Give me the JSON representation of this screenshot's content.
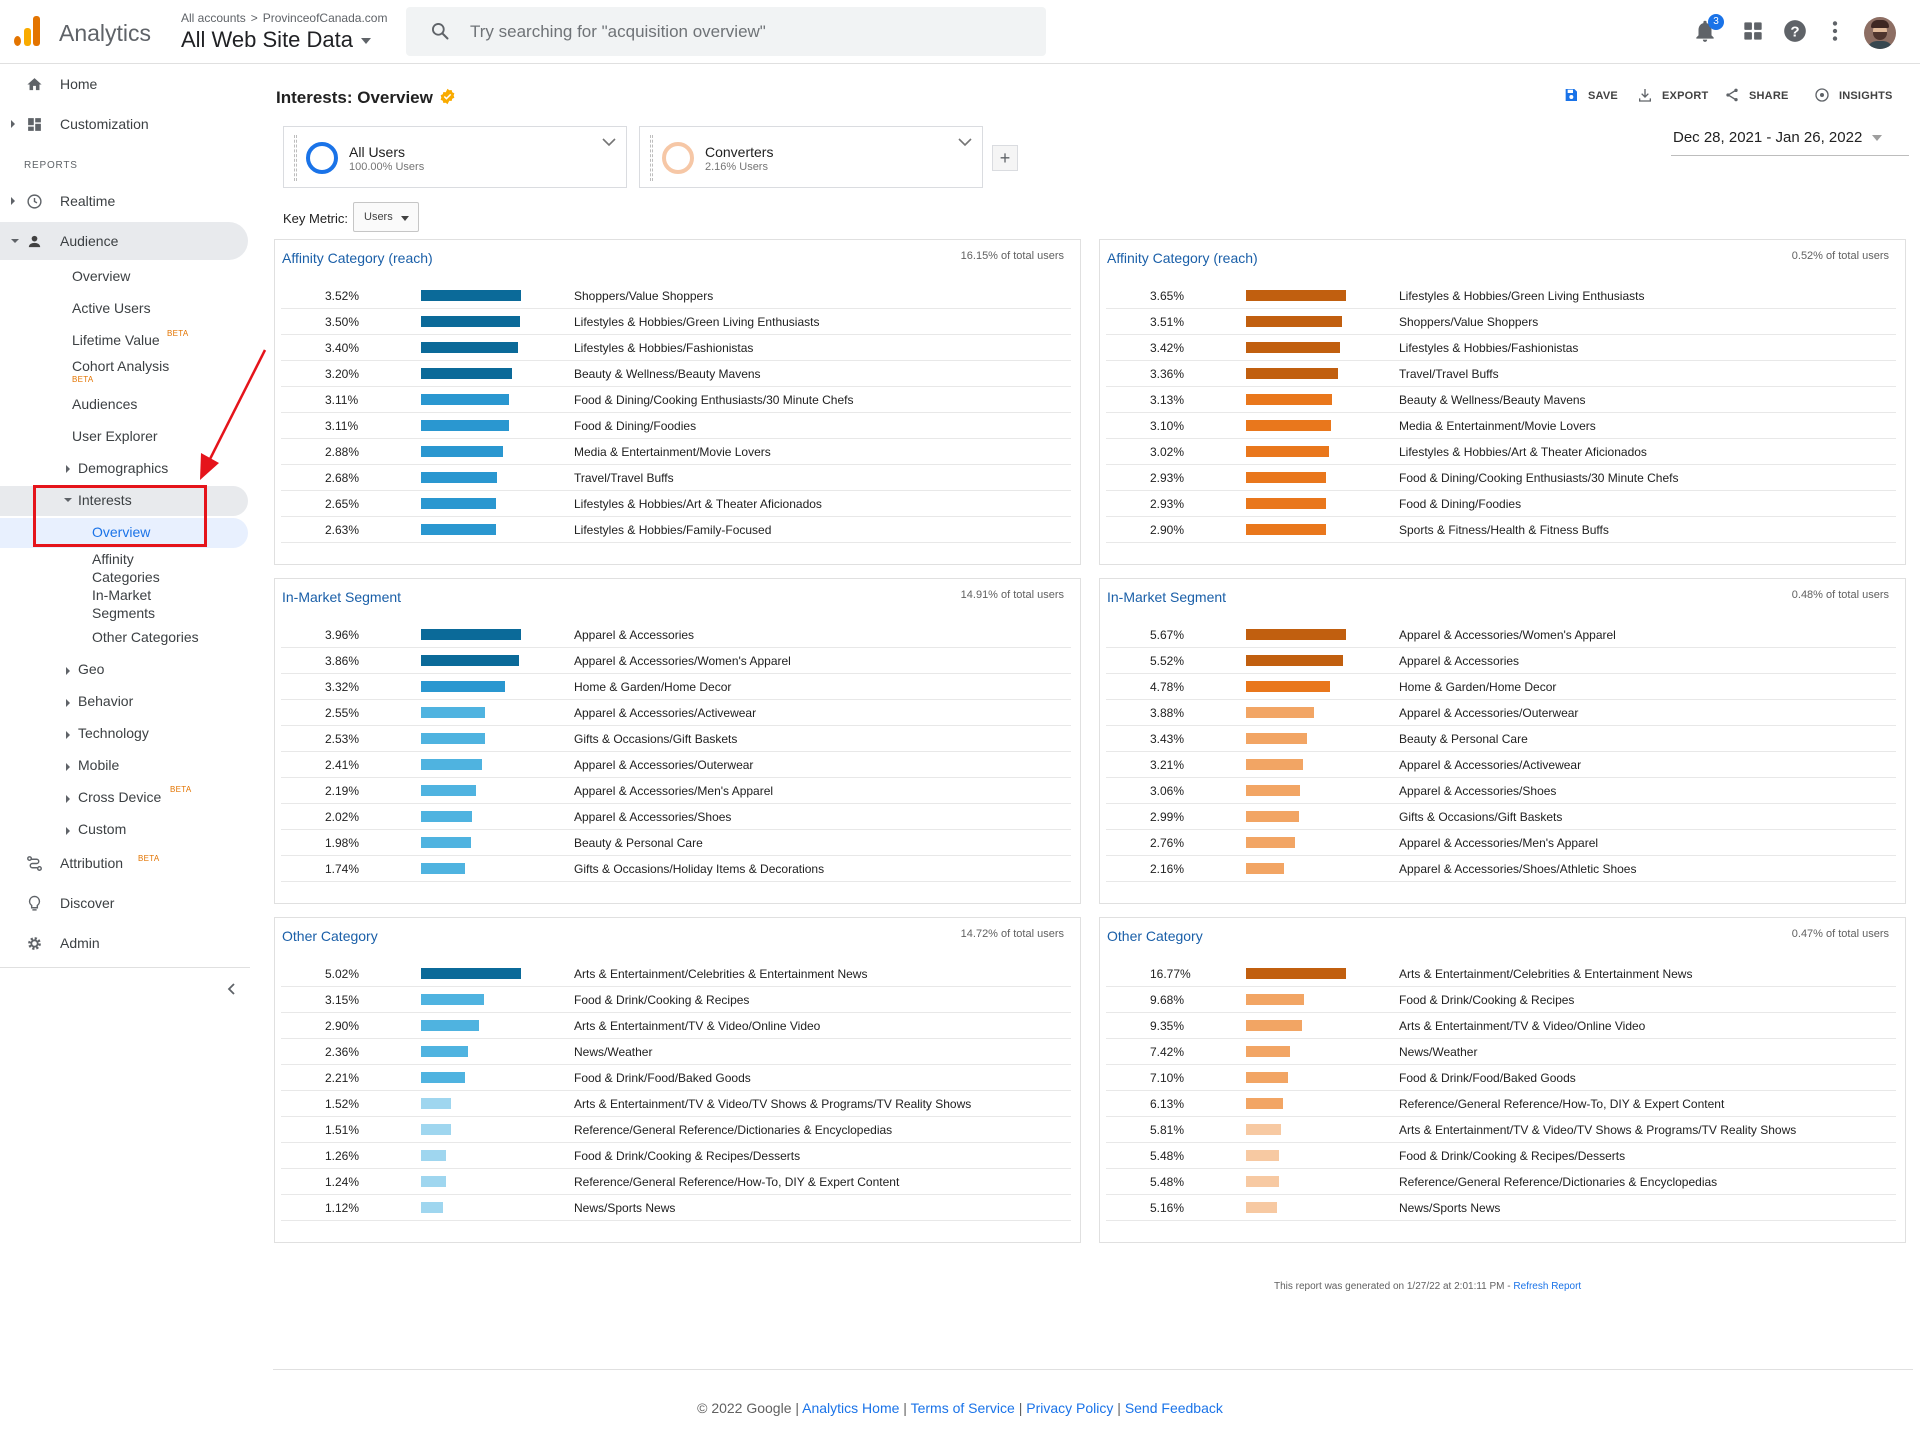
{
  "topbar": {
    "app_name": "Analytics",
    "breadcrumb_root": "All accounts",
    "breadcrumb_sep": ">",
    "breadcrumb_property": "ProvinceofCanada.com",
    "view_name": "All Web Site Data",
    "search_placeholder": "Try searching for \"acquisition overview\"",
    "notifications_count": "3"
  },
  "sidebar": {
    "home": "Home",
    "customization": "Customization",
    "reports_label": "REPORTS",
    "realtime": "Realtime",
    "audience": "Audience",
    "audience_items": {
      "overview": "Overview",
      "active_users": "Active Users",
      "lifetime_value": "Lifetime Value",
      "cohort_analysis": "Cohort Analysis",
      "audiences": "Audiences",
      "user_explorer": "User Explorer",
      "demographics": "Demographics",
      "interests": "Interests",
      "interests_overview": "Overview",
      "affinity_categories_1": "Affinity",
      "affinity_categories_2": "Categories",
      "in_market_1": "In-Market",
      "in_market_2": "Segments",
      "other_categories": "Other Categories",
      "geo": "Geo",
      "behavior": "Behavior",
      "technology": "Technology",
      "mobile": "Mobile",
      "cross_device": "Cross Device",
      "custom": "Custom"
    },
    "beta": "BETA",
    "attribution": "Attribution",
    "discover": "Discover",
    "admin": "Admin"
  },
  "page": {
    "title": "Interests: Overview",
    "actions": {
      "save": "SAVE",
      "export": "EXPORT",
      "share": "SHARE",
      "insights": "INSIGHTS"
    },
    "segments": [
      {
        "name": "All Users",
        "pct": "100.00% Users",
        "color": "#1a73e8"
      },
      {
        "name": "Converters",
        "pct": "2.16% Users",
        "color": "#f6c7a6"
      }
    ],
    "add_segment": "+",
    "date_range": "Dec 28, 2021 - Jan 26, 2022",
    "key_metric_label": "Key Metric:",
    "key_metric_value": "Users"
  },
  "colors": {
    "blue_dark": "#0b6a99",
    "blue_mid": "#2a97d0",
    "blue_light": "#4fb3e0",
    "blue_pale": "#9fd6ef",
    "orange_dark": "#c15f0f",
    "orange_mid": "#e9771c",
    "orange_light": "#f2a564",
    "orange_pale": "#f7c9a2"
  },
  "panels": [
    {
      "title": "Affinity Category (reach)",
      "total": "16.15% of total users",
      "palette": "blue",
      "rows": [
        {
          "value": "3.52%",
          "fraction": 1.0,
          "label": "Shoppers/Value Shoppers"
        },
        {
          "value": "3.50%",
          "fraction": 0.994,
          "label": "Lifestyles & Hobbies/Green Living Enthusiasts"
        },
        {
          "value": "3.40%",
          "fraction": 0.966,
          "label": "Lifestyles & Hobbies/Fashionistas"
        },
        {
          "value": "3.20%",
          "fraction": 0.909,
          "label": "Beauty & Wellness/Beauty Mavens"
        },
        {
          "value": "3.11%",
          "fraction": 0.884,
          "label": "Food & Dining/Cooking Enthusiasts/30 Minute Chefs"
        },
        {
          "value": "3.11%",
          "fraction": 0.884,
          "label": "Food & Dining/Foodies"
        },
        {
          "value": "2.88%",
          "fraction": 0.818,
          "label": "Media & Entertainment/Movie Lovers"
        },
        {
          "value": "2.68%",
          "fraction": 0.761,
          "label": "Travel/Travel Buffs"
        },
        {
          "value": "2.65%",
          "fraction": 0.753,
          "label": "Lifestyles & Hobbies/Art & Theater Aficionados"
        },
        {
          "value": "2.63%",
          "fraction": 0.747,
          "label": "Lifestyles & Hobbies/Family-Focused"
        }
      ]
    },
    {
      "title": "Affinity Category (reach)",
      "total": "0.52% of total users",
      "palette": "orange",
      "rows": [
        {
          "value": "3.65%",
          "fraction": 1.0,
          "label": "Lifestyles & Hobbies/Green Living Enthusiasts"
        },
        {
          "value": "3.51%",
          "fraction": 0.962,
          "label": "Shoppers/Value Shoppers"
        },
        {
          "value": "3.42%",
          "fraction": 0.937,
          "label": "Lifestyles & Hobbies/Fashionistas"
        },
        {
          "value": "3.36%",
          "fraction": 0.921,
          "label": "Travel/Travel Buffs"
        },
        {
          "value": "3.13%",
          "fraction": 0.858,
          "label": "Beauty & Wellness/Beauty Mavens"
        },
        {
          "value": "3.10%",
          "fraction": 0.849,
          "label": "Media & Entertainment/Movie Lovers"
        },
        {
          "value": "3.02%",
          "fraction": 0.827,
          "label": "Lifestyles & Hobbies/Art & Theater Aficionados"
        },
        {
          "value": "2.93%",
          "fraction": 0.803,
          "label": "Food & Dining/Cooking Enthusiasts/30 Minute Chefs"
        },
        {
          "value": "2.93%",
          "fraction": 0.803,
          "label": "Food & Dining/Foodies"
        },
        {
          "value": "2.90%",
          "fraction": 0.795,
          "label": "Sports & Fitness/Health & Fitness Buffs"
        }
      ]
    },
    {
      "title": "In-Market Segment",
      "total": "14.91% of total users",
      "palette": "blue",
      "rows": [
        {
          "value": "3.96%",
          "fraction": 1.0,
          "label": "Apparel & Accessories"
        },
        {
          "value": "3.86%",
          "fraction": 0.975,
          "label": "Apparel & Accessories/Women's Apparel"
        },
        {
          "value": "3.32%",
          "fraction": 0.838,
          "label": "Home & Garden/Home Decor"
        },
        {
          "value": "2.55%",
          "fraction": 0.644,
          "label": "Apparel & Accessories/Activewear"
        },
        {
          "value": "2.53%",
          "fraction": 0.639,
          "label": "Gifts & Occasions/Gift Baskets"
        },
        {
          "value": "2.41%",
          "fraction": 0.609,
          "label": "Apparel & Accessories/Outerwear"
        },
        {
          "value": "2.19%",
          "fraction": 0.553,
          "label": "Apparel & Accessories/Men's Apparel"
        },
        {
          "value": "2.02%",
          "fraction": 0.51,
          "label": "Apparel & Accessories/Shoes"
        },
        {
          "value": "1.98%",
          "fraction": 0.5,
          "label": "Beauty & Personal Care"
        },
        {
          "value": "1.74%",
          "fraction": 0.439,
          "label": "Gifts & Occasions/Holiday Items & Decorations"
        }
      ]
    },
    {
      "title": "In-Market Segment",
      "total": "0.48% of total users",
      "palette": "orange",
      "rows": [
        {
          "value": "5.67%",
          "fraction": 1.0,
          "label": "Apparel & Accessories/Women's Apparel"
        },
        {
          "value": "5.52%",
          "fraction": 0.974,
          "label": "Apparel & Accessories"
        },
        {
          "value": "4.78%",
          "fraction": 0.843,
          "label": "Home & Garden/Home Decor"
        },
        {
          "value": "3.88%",
          "fraction": 0.684,
          "label": "Apparel & Accessories/Outerwear"
        },
        {
          "value": "3.43%",
          "fraction": 0.605,
          "label": "Beauty & Personal Care"
        },
        {
          "value": "3.21%",
          "fraction": 0.566,
          "label": "Apparel & Accessories/Activewear"
        },
        {
          "value": "3.06%",
          "fraction": 0.54,
          "label": "Apparel & Accessories/Shoes"
        },
        {
          "value": "2.99%",
          "fraction": 0.527,
          "label": "Gifts & Occasions/Gift Baskets"
        },
        {
          "value": "2.76%",
          "fraction": 0.487,
          "label": "Apparel & Accessories/Men's Apparel"
        },
        {
          "value": "2.16%",
          "fraction": 0.381,
          "label": "Apparel & Accessories/Shoes/Athletic Shoes"
        }
      ]
    },
    {
      "title": "Other Category",
      "total": "14.72% of total users",
      "palette": "blue",
      "rows": [
        {
          "value": "5.02%",
          "fraction": 1.0,
          "label": "Arts & Entertainment/Celebrities & Entertainment News"
        },
        {
          "value": "3.15%",
          "fraction": 0.627,
          "label": "Food & Drink/Cooking & Recipes"
        },
        {
          "value": "2.90%",
          "fraction": 0.578,
          "label": "Arts & Entertainment/TV & Video/Online Video"
        },
        {
          "value": "2.36%",
          "fraction": 0.47,
          "label": "News/Weather"
        },
        {
          "value": "2.21%",
          "fraction": 0.44,
          "label": "Food & Drink/Food/Baked Goods"
        },
        {
          "value": "1.52%",
          "fraction": 0.303,
          "label": "Arts & Entertainment/TV & Video/TV Shows & Programs/TV Reality Shows"
        },
        {
          "value": "1.51%",
          "fraction": 0.301,
          "label": "Reference/General Reference/Dictionaries & Encyclopedias"
        },
        {
          "value": "1.26%",
          "fraction": 0.251,
          "label": "Food & Drink/Cooking & Recipes/Desserts"
        },
        {
          "value": "1.24%",
          "fraction": 0.247,
          "label": "Reference/General Reference/How-To, DIY & Expert Content"
        },
        {
          "value": "1.12%",
          "fraction": 0.223,
          "label": "News/Sports News"
        }
      ]
    },
    {
      "title": "Other Category",
      "total": "0.47% of total users",
      "palette": "orange",
      "rows": [
        {
          "value": "16.77%",
          "fraction": 1.0,
          "label": "Arts & Entertainment/Celebrities & Entertainment News"
        },
        {
          "value": "9.68%",
          "fraction": 0.577,
          "label": "Food & Drink/Cooking & Recipes"
        },
        {
          "value": "9.35%",
          "fraction": 0.558,
          "label": "Arts & Entertainment/TV & Video/Online Video"
        },
        {
          "value": "7.42%",
          "fraction": 0.442,
          "label": "News/Weather"
        },
        {
          "value": "7.10%",
          "fraction": 0.423,
          "label": "Food & Drink/Food/Baked Goods"
        },
        {
          "value": "6.13%",
          "fraction": 0.366,
          "label": "Reference/General Reference/How-To, DIY & Expert Content"
        },
        {
          "value": "5.81%",
          "fraction": 0.346,
          "label": "Arts & Entertainment/TV & Video/TV Shows & Programs/TV Reality Shows"
        },
        {
          "value": "5.48%",
          "fraction": 0.327,
          "label": "Food & Drink/Cooking & Recipes/Desserts"
        },
        {
          "value": "5.48%",
          "fraction": 0.327,
          "label": "Reference/General Reference/Dictionaries & Encyclopedias"
        },
        {
          "value": "5.16%",
          "fraction": 0.308,
          "label": "News/Sports News"
        }
      ]
    }
  ],
  "report_note": {
    "text": "This report was generated on 1/27/22 at 2:01:11 PM - ",
    "link": "Refresh Report"
  },
  "footer": {
    "copyright": "© 2022 Google | ",
    "links": [
      "Analytics Home",
      "Terms of Service",
      "Privacy Policy",
      "Send Feedback"
    ],
    "sep": " | "
  }
}
